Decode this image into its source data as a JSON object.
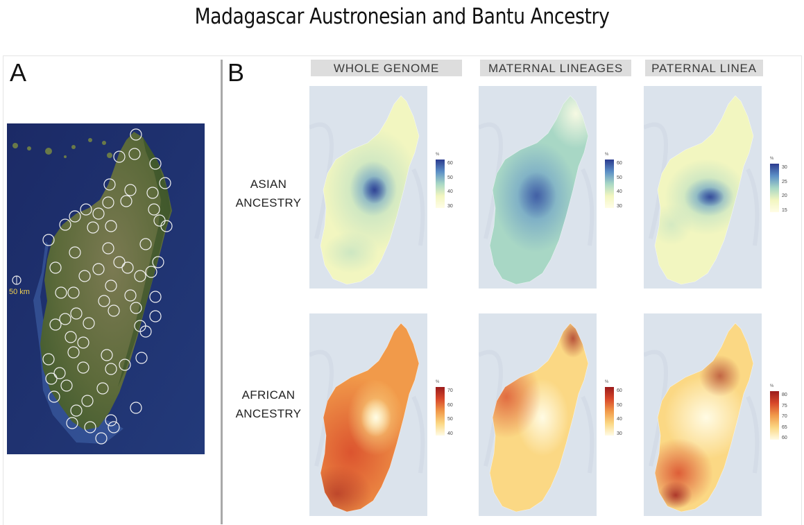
{
  "title": "Madagascar Austronesian and Bantu Ancestry",
  "panels": {
    "a": {
      "label": "A",
      "scale_label": "50 km"
    },
    "b": {
      "label": "B"
    }
  },
  "columns": [
    "WHOLE GENOME",
    "MATERNAL LINEAGES",
    "PATERNAL LINEA"
  ],
  "rows": [
    {
      "label_line1": "ASIAN",
      "label_line2": "ANCESTRY"
    },
    {
      "label_line1": "AFRICAN",
      "label_line2": "ANCESTRY"
    }
  ],
  "legend_unit": "%",
  "legends": {
    "asian_whole_genome": {
      "ticks": [
        "60",
        "50",
        "40",
        "30"
      ],
      "colors": [
        "#2b3b8f",
        "#5c8fc6",
        "#a8d7c5",
        "#f2f6c0",
        "#fffde6"
      ]
    },
    "asian_maternal": {
      "ticks": [
        "60",
        "50",
        "40",
        "30"
      ],
      "colors": [
        "#2b3b8f",
        "#5c8fc6",
        "#a8d7c5",
        "#f2f6c0",
        "#fffde6"
      ]
    },
    "asian_paternal": {
      "ticks": [
        "30",
        "25",
        "20",
        "15"
      ],
      "colors": [
        "#2b3b8f",
        "#5c8fc6",
        "#a8d7c5",
        "#f2f6c0",
        "#fffde6"
      ]
    },
    "african_whole_genome": {
      "ticks": [
        "70",
        "60",
        "50",
        "40"
      ],
      "colors": [
        "#9c1b1b",
        "#d8482a",
        "#f19a4a",
        "#fbd884",
        "#fffbe4"
      ]
    },
    "african_maternal": {
      "ticks": [
        "60",
        "50",
        "40",
        "30"
      ],
      "colors": [
        "#9c1b1b",
        "#d8482a",
        "#f19a4a",
        "#fbd884",
        "#fffbe4"
      ]
    },
    "african_paternal": {
      "ticks": [
        "80",
        "75",
        "70",
        "65",
        "60"
      ],
      "colors": [
        "#9c1b1b",
        "#d8482a",
        "#f19a4a",
        "#fbd884",
        "#fffbe4"
      ]
    }
  },
  "colors": {
    "ocean_satellite": "#1e2f6e",
    "land_satellite": "#5e6a3a",
    "sample_circle": "#f2f2f2",
    "map_background": "#dbe3ec",
    "scale_label": "#f0d050"
  }
}
